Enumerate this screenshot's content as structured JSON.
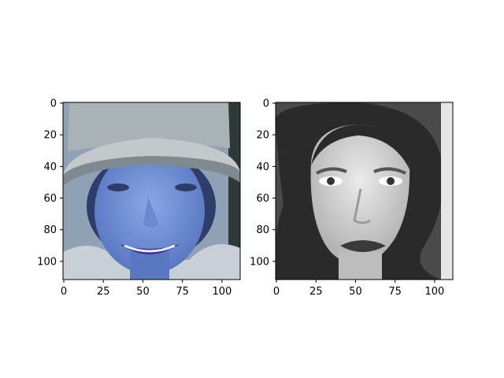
{
  "panels": [
    {
      "name": "panel-left",
      "image": {
        "description": "Blue-tinted photo of a smiling person wearing a light grey top hat",
        "palette": {
          "background": "#8fa1b5",
          "hat": "#a9b3b5",
          "hat_shadow": "#7e8a90",
          "skin": "#7f9bdb",
          "skin_shadow": "#5a78c2",
          "lips": "#3d2f8f",
          "hair": "#2f3d6a",
          "clothes": "#c9cfd6"
        }
      },
      "xticks": [
        "0",
        "25",
        "50",
        "75",
        "100"
      ],
      "yticks": [
        "0",
        "20",
        "40",
        "60",
        "80",
        "100"
      ]
    },
    {
      "name": "panel-right",
      "image": {
        "description": "Grayscale portrait of a woman with shoulder-length dark wavy hair and dark lips",
        "palette": {
          "background": "#e6e6e6",
          "hair": "#2a2a2a",
          "hair_mid": "#4a4a4a",
          "skin": "#d9d9d9",
          "skin_shadow": "#a8a8a8",
          "lips": "#3a3a3a",
          "eyes": "#333333"
        }
      },
      "xticks": [
        "0",
        "25",
        "50",
        "75",
        "100"
      ],
      "yticks": [
        "0",
        "20",
        "40",
        "60",
        "80",
        "100"
      ]
    }
  ]
}
